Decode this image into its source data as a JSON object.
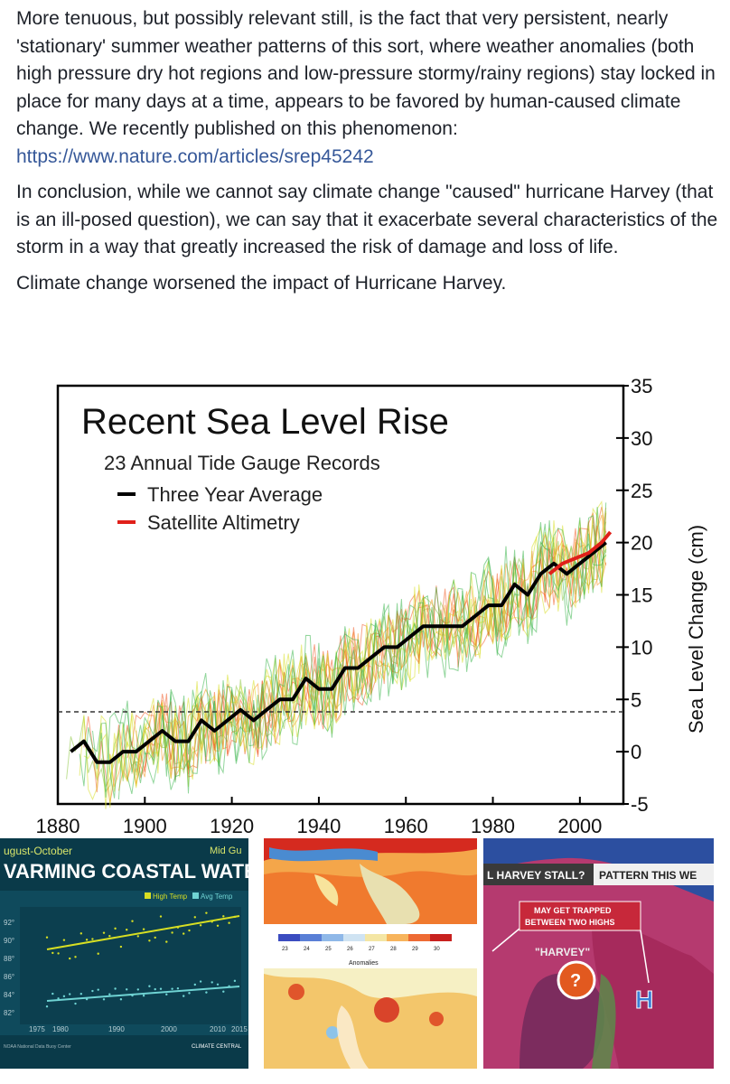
{
  "post": {
    "para1": "More tenuous, but possibly relevant still, is the fact that very persistent, nearly 'stationary' summer weather patterns of this sort, where weather anomalies (both high pressure dry hot regions and low-pressure stormy/rainy regions) stay locked in place for many days at a time, appears to be favored by human-caused climate change. We recently published on this phenomenon:",
    "link": "https://www.nature.com/articles/srep45242",
    "para2": "In conclusion, while we cannot say climate change \"caused\" hurricane Harvey (that is an ill-posed question), we can say that it exacerbate several characteristics of the storm in a way that greatly increased the risk of damage and loss of life.",
    "para3": "Climate change worsened the impact of Hurricane Harvey."
  },
  "chart_data": {
    "type": "line",
    "title": "Recent Sea Level Rise",
    "subtitle": "23 Annual Tide Gauge Records",
    "ylabel": "Sea Level Change (cm)",
    "xlabel": "",
    "xlim": [
      1880,
      2010
    ],
    "ylim": [
      -5,
      35
    ],
    "x_ticks": [
      1880,
      1900,
      1920,
      1940,
      1960,
      1980,
      2000
    ],
    "y_ticks": [
      35,
      30,
      25,
      20,
      15,
      10,
      5,
      0,
      -5
    ],
    "series": [
      {
        "name": "Three Year Average",
        "color": "#000000",
        "x": [
          1883,
          1886,
          1889,
          1892,
          1895,
          1898,
          1901,
          1904,
          1907,
          1910,
          1913,
          1916,
          1919,
          1922,
          1925,
          1928,
          1931,
          1934,
          1937,
          1940,
          1943,
          1946,
          1949,
          1952,
          1955,
          1958,
          1961,
          1964,
          1967,
          1970,
          1973,
          1976,
          1979,
          1982,
          1985,
          1988,
          1991,
          1994,
          1997,
          2000,
          2003,
          2006
        ],
        "values": [
          0,
          1,
          -1,
          -1,
          0,
          0,
          1,
          2,
          1,
          1,
          3,
          2,
          3,
          4,
          3,
          4,
          5,
          5,
          7,
          6,
          6,
          8,
          8,
          9,
          10,
          10,
          11,
          12,
          12,
          12,
          12,
          13,
          14,
          14,
          16,
          15,
          17,
          18,
          17,
          18,
          19,
          20
        ]
      },
      {
        "name": "Satellite Altimetry",
        "color": "#e0201a",
        "x": [
          1993,
          1996,
          1999,
          2002,
          2005,
          2007
        ],
        "values": [
          17,
          18,
          18.5,
          19,
          20,
          21
        ]
      }
    ],
    "legend": [
      "Three Year Average",
      "Satellite Altimetry"
    ],
    "legend_position": "top-left"
  },
  "thumb1": {
    "header": "ugust-October",
    "title": "VARMING COASTAL WATER",
    "corner": "Mid Gu",
    "legend_high": "High Temp",
    "legend_avg": "Avg Temp",
    "y_labels": [
      "92°",
      "90°",
      "88°",
      "86°",
      "84°",
      "82°"
    ],
    "x_labels": [
      "1975",
      "1980",
      "1990",
      "2000",
      "2010",
      "2015"
    ],
    "source": "NOAA National Data Buoy Center",
    "brand": "CLIMATE CENTRAL"
  },
  "thumb2": {
    "scale": [
      "23",
      "24",
      "25",
      "26",
      "27",
      "28",
      "29",
      "30"
    ],
    "anomalies": "Anomalies"
  },
  "thumb3": {
    "banner_left": "L HARVEY STALL?",
    "banner_right": "PATTERN THIS WE",
    "warning1": "MAY GET TRAPPED",
    "warning2": "BETWEEN TWO HIGHS",
    "storm": "\"HARVEY\"",
    "high": "H"
  },
  "colors": {
    "link": "#365899",
    "gauge_colors": [
      "#8cc63f",
      "#f7941d",
      "#f15a24",
      "#d7df23",
      "#39b54a"
    ]
  }
}
